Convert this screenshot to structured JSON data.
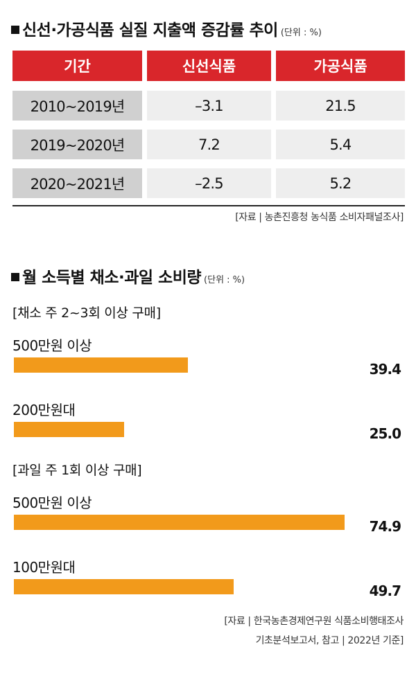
{
  "section1": {
    "title": "신선·가공식품 실질 지출액 증감률 추이",
    "unit": "(단위 : %)",
    "headers": [
      "기간",
      "신선식품",
      "가공식품"
    ],
    "rows": [
      {
        "period": "2010~2019년",
        "fresh": "–3.1",
        "processed": "21.5"
      },
      {
        "period": "2019~2020년",
        "fresh": "7.2",
        "processed": "5.4"
      },
      {
        "period": "2020~2021년",
        "fresh": "–2.5",
        "processed": "5.2"
      }
    ],
    "source": "[자료 | 농촌진흥청 농식품 소비자패널조사]"
  },
  "section2": {
    "title": "월 소득별 채소·과일 소비량",
    "unit": "(단위 : %)",
    "source_line1": "[자료 | 한국농촌경제연구원 식품소비행태조사",
    "source_line2": "기초분석보고서, 참고 | 2022년 기준]"
  },
  "chart_data": {
    "type": "bar",
    "orientation": "horizontal",
    "bar_color": "#f29a1b",
    "groups": [
      {
        "label": "[채소 주 2~3회 이상 구매]",
        "categories": [
          "500만원 이상",
          "200만원대"
        ],
        "values": [
          39.4,
          25.0
        ],
        "value_labels": [
          "39.4",
          "25.0"
        ]
      },
      {
        "label": "[과일 주 1회 이상 구매]",
        "categories": [
          "500만원 이상",
          "100만원대"
        ],
        "values": [
          74.9,
          49.7
        ],
        "value_labels": [
          "74.9",
          "49.7"
        ]
      }
    ],
    "xlim": [
      0,
      80
    ]
  }
}
